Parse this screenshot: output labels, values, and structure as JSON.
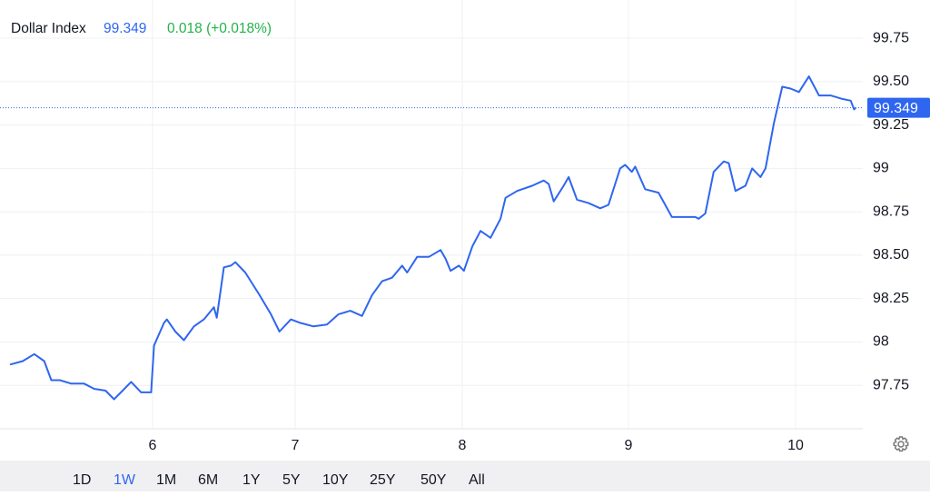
{
  "chart_data": {
    "type": "line",
    "title": "Dollar Index",
    "last_value": 99.349,
    "change_text": "0.018 (+0.018%)",
    "x": [
      5.0,
      5.09,
      5.17,
      5.24,
      5.29,
      5.35,
      5.43,
      5.52,
      5.59,
      5.67,
      5.73,
      5.79,
      5.85,
      5.92,
      5.99,
      6.01,
      6.08,
      6.1,
      6.16,
      6.22,
      6.29,
      6.36,
      6.43,
      6.45,
      6.5,
      6.55,
      6.58,
      6.65,
      6.75,
      6.83,
      6.89,
      6.97,
      7.03,
      7.11,
      7.19,
      7.26,
      7.33,
      7.4,
      7.46,
      7.52,
      7.58,
      7.64,
      7.67,
      7.73,
      7.8,
      7.87,
      7.9,
      7.93,
      7.98,
      8.01,
      8.06,
      8.11,
      8.17,
      8.23,
      8.26,
      8.33,
      8.42,
      8.49,
      8.52,
      8.55,
      8.61,
      8.64,
      8.69,
      8.76,
      8.83,
      8.88,
      8.95,
      8.98,
      9.02,
      9.04,
      9.1,
      9.18,
      9.26,
      9.33,
      9.4,
      9.42,
      9.46,
      9.51,
      9.57,
      9.6,
      9.64,
      9.7,
      9.74,
      9.79,
      9.82,
      9.87,
      9.92,
      9.97,
      10.02,
      10.08,
      10.14,
      10.21,
      10.28,
      10.33,
      10.35,
      10.36
    ],
    "series": [
      {
        "name": "Dollar Index",
        "color": "#2f66f0",
        "values": [
          97.87,
          97.89,
          97.93,
          97.89,
          97.78,
          97.78,
          97.76,
          97.76,
          97.73,
          97.72,
          97.67,
          97.72,
          97.77,
          97.71,
          97.71,
          97.98,
          98.11,
          98.13,
          98.06,
          98.01,
          98.09,
          98.13,
          98.2,
          98.14,
          98.43,
          98.44,
          98.46,
          98.4,
          98.27,
          98.16,
          98.06,
          98.13,
          98.11,
          98.09,
          98.1,
          98.16,
          98.18,
          98.15,
          98.27,
          98.35,
          98.37,
          98.44,
          98.4,
          98.49,
          98.49,
          98.53,
          98.48,
          98.41,
          98.44,
          98.41,
          98.55,
          98.64,
          98.6,
          98.71,
          98.83,
          98.87,
          98.9,
          98.93,
          98.91,
          98.81,
          98.9,
          98.95,
          98.82,
          98.8,
          98.77,
          98.79,
          99.0,
          99.02,
          98.98,
          99.01,
          98.88,
          98.86,
          98.72,
          98.72,
          98.72,
          98.71,
          98.74,
          98.98,
          99.04,
          99.03,
          98.87,
          98.9,
          99.0,
          98.95,
          99.0,
          99.26,
          99.47,
          99.46,
          99.44,
          99.53,
          99.42,
          99.42,
          99.4,
          99.39,
          99.34,
          99.349
        ]
      }
    ],
    "xlim": [
      5,
      10.4
    ],
    "xticks": [
      6,
      7,
      8,
      9,
      10
    ],
    "ylim": [
      97.5,
      99.97
    ],
    "yticks": [
      97.75,
      98,
      98.25,
      {
        "value": 98.5,
        "label": "98.50"
      },
      98.75,
      99,
      99.25,
      {
        "value": 99.5,
        "label": "99.50"
      },
      99.75
    ],
    "grid": true,
    "ranges": [
      "1D",
      "1W",
      "1M",
      "6M",
      "1Y",
      "5Y",
      "10Y",
      "25Y",
      "50Y",
      "All"
    ],
    "selected_range": "1W"
  }
}
